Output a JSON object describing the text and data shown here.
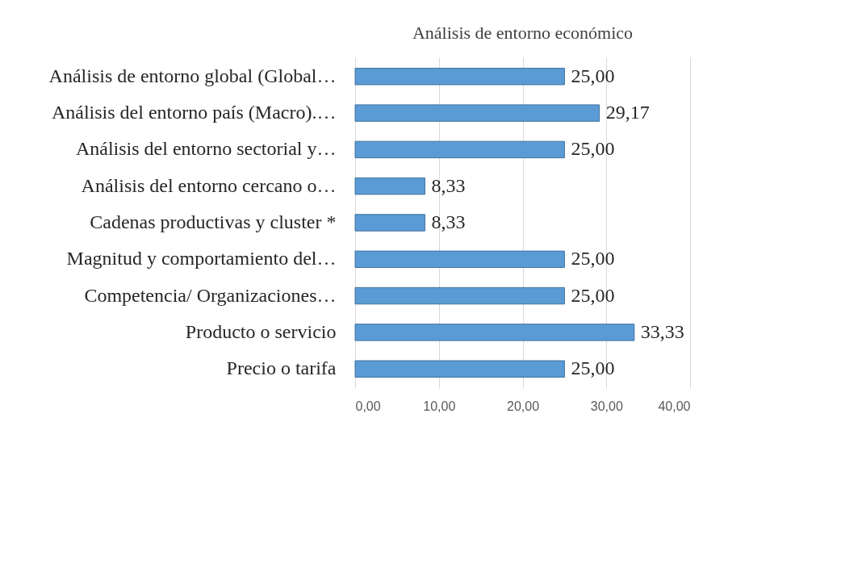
{
  "chart_data": {
    "type": "bar",
    "orientation": "horizontal",
    "title": "Análisis de entorno económico",
    "categories": [
      "Análisis de entorno global (Global…",
      "Análisis del entorno país (Macro).…",
      "Análisis del entorno sectorial y…",
      "Análisis del entorno cercano o…",
      "Cadenas productivas y cluster *",
      "Magnitud y comportamiento del…",
      "Competencia/ Organizaciones…",
      "Producto o servicio",
      "Precio o tarifa"
    ],
    "values": [
      25.0,
      29.17,
      25.0,
      8.33,
      8.33,
      25.0,
      25.0,
      33.33,
      25.0
    ],
    "value_labels": [
      "25,00",
      "29,17",
      "25,00",
      "8,33",
      "8,33",
      "25,00",
      "25,00",
      "33,33",
      "25,00"
    ],
    "color": "#5b9bd5",
    "xlim": [
      0,
      40
    ],
    "xticks": [
      {
        "value": 0,
        "label": "0,00"
      },
      {
        "value": 10,
        "label": "10,00"
      },
      {
        "value": 20,
        "label": "20,00"
      },
      {
        "value": 30,
        "label": "30,00"
      },
      {
        "value": 40,
        "label": "40,00"
      }
    ],
    "grid": "x"
  }
}
